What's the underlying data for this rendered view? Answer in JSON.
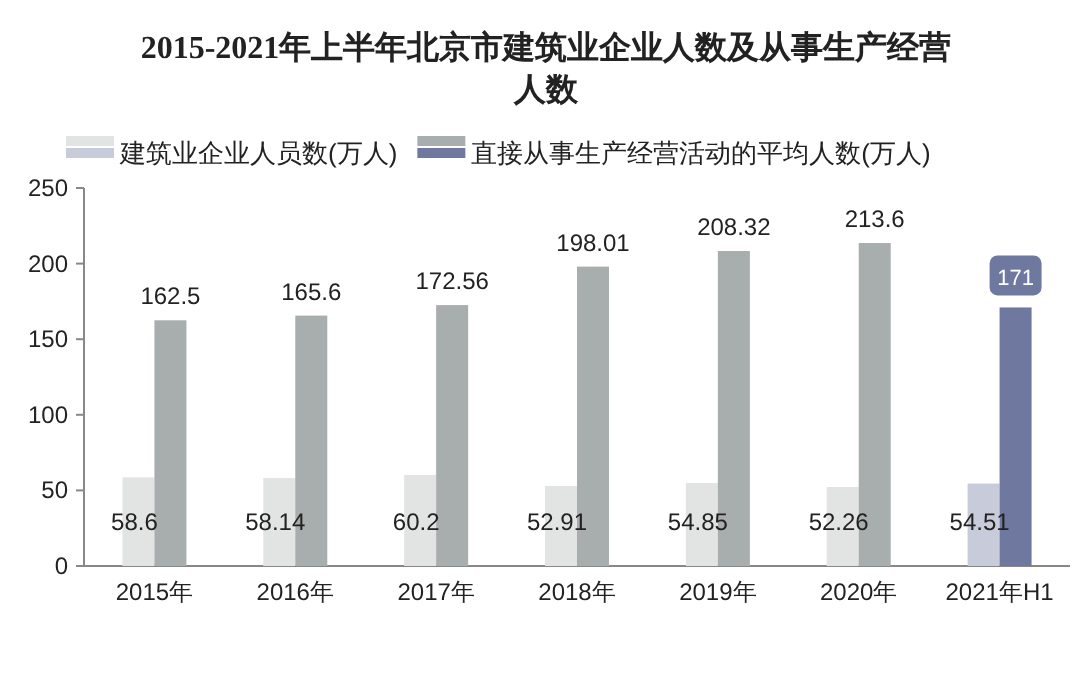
{
  "chart_data": {
    "type": "bar",
    "title": "2015-2021年上半年北京市建筑业企业人数及从事生产经营人数",
    "categories": [
      "2015年",
      "2016年",
      "2017年",
      "2018年",
      "2019年",
      "2020年",
      "2021年H1"
    ],
    "series": [
      {
        "name": "建筑业企业人员数(万人)",
        "color": "#e2e4e3",
        "colors": [
          "#e2e4e3",
          "#e2e4e3",
          "#e2e4e3",
          "#e2e4e3",
          "#e2e4e3",
          "#e2e4e3",
          "#c8cbda"
        ],
        "values": [
          58.6,
          58.14,
          60.2,
          52.91,
          54.85,
          52.26,
          54.51
        ]
      },
      {
        "name": "直接从事生产经营活动的平均人数(万人)",
        "color": "#a8adad",
        "colors": [
          "#a8adad",
          "#a8adad",
          "#a8adad",
          "#a8adad",
          "#a8adad",
          "#a8adad",
          "#6f789e"
        ],
        "values": [
          162.5,
          165.6,
          172.56,
          198.01,
          208.32,
          213.6,
          171
        ]
      }
    ],
    "ylim": [
      0,
      250
    ],
    "yticks": [
      0,
      50,
      100,
      150,
      200,
      250
    ],
    "grid": false,
    "legend": "top",
    "data_labels": true
  }
}
